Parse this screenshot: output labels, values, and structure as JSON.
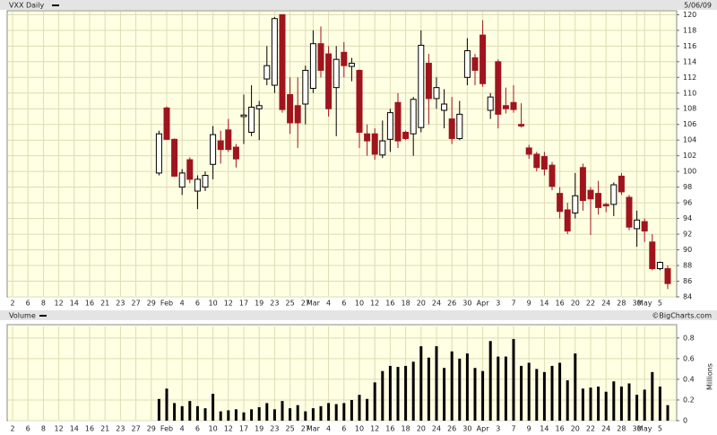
{
  "chart_data": [
    {
      "type": "candlestick",
      "title": "VXX Daily",
      "date": "5/06/09",
      "categories": [
        "2",
        null,
        "6",
        null,
        "8",
        null,
        "12",
        null,
        "14",
        null,
        "16",
        null,
        "21",
        null,
        "23",
        null,
        "27",
        null,
        "29",
        null,
        "Feb",
        null,
        "4",
        null,
        "6",
        null,
        "10",
        null,
        "12",
        null,
        "17",
        null,
        "19",
        null,
        "23",
        null,
        "25",
        null,
        "27",
        "Mar",
        null,
        "4",
        null,
        "6",
        null,
        "10",
        null,
        "12",
        null,
        "16",
        null,
        "18",
        null,
        "20",
        null,
        "24",
        null,
        "26",
        null,
        "30",
        null,
        "Apr",
        null,
        "3",
        null,
        "7",
        null,
        "9",
        null,
        "14",
        null,
        "16",
        null,
        "20",
        null,
        "22",
        null,
        "24",
        null,
        "28",
        null,
        "30",
        "May",
        null,
        "5",
        null
      ],
      "open": [
        null,
        null,
        null,
        null,
        null,
        null,
        null,
        null,
        null,
        null,
        null,
        null,
        null,
        null,
        null,
        null,
        null,
        null,
        null,
        99.8,
        108.1,
        104.1,
        98,
        101.5,
        97.5,
        98,
        100.9,
        103.9,
        105.3,
        103.1,
        107,
        105,
        108,
        111.8,
        111,
        120,
        109.8,
        108.4,
        108.6,
        110.6,
        116.3,
        115,
        110.7,
        115.2,
        113.4,
        112.9,
        104.8,
        104.8,
        102.1,
        104.1,
        108.8,
        105,
        104.8,
        105.6,
        113.8,
        109.3,
        107.8,
        106.7,
        104.2,
        112,
        114.5,
        117.4,
        107.8,
        114,
        108.4,
        108.8,
        106,
        103,
        102.2,
        101.9,
        100.8,
        97.2,
        95.1,
        94.7,
        100.5,
        97.6,
        97.2,
        95.8,
        95.8,
        99.4,
        96.7,
        92.7,
        93.6,
        91,
        87.6,
        87.6
      ],
      "high": [
        null,
        null,
        null,
        null,
        null,
        null,
        null,
        null,
        null,
        null,
        null,
        null,
        null,
        null,
        null,
        null,
        null,
        null,
        null,
        105.2,
        108.3,
        104.2,
        100.3,
        101.8,
        99.5,
        100,
        105.8,
        105.2,
        106.7,
        103.5,
        109.8,
        111,
        109,
        116,
        119.7,
        120,
        112,
        112,
        113.5,
        118,
        118.5,
        116,
        116,
        116.5,
        114.5,
        113,
        106,
        105.5,
        106.5,
        108,
        110,
        105.2,
        109.5,
        118,
        115,
        112,
        110.5,
        109.5,
        109,
        117,
        115,
        119.3,
        110,
        114.3,
        110.7,
        111,
        108.7,
        103.4,
        102.5,
        102.5,
        101.2,
        98,
        96,
        99.8,
        101,
        98,
        98.8,
        96,
        98.6,
        99.8,
        97,
        95,
        94,
        92,
        88.5,
        88
      ],
      "low": [
        null,
        null,
        null,
        null,
        null,
        null,
        null,
        null,
        null,
        null,
        null,
        null,
        null,
        null,
        null,
        null,
        null,
        null,
        null,
        99.5,
        104,
        99.3,
        97,
        98.5,
        95.2,
        97.5,
        99,
        101,
        102.5,
        100.5,
        103.5,
        104.5,
        104,
        111,
        110,
        107.5,
        104.8,
        103,
        106,
        110,
        112,
        107,
        104.5,
        112,
        111.5,
        103,
        102,
        101.5,
        101.7,
        102.5,
        103,
        104,
        102,
        105,
        106,
        108,
        105.5,
        103.5,
        104,
        111,
        111,
        110.8,
        106.7,
        105.5,
        107.4,
        107.5,
        105.6,
        101.6,
        100,
        99.5,
        97.6,
        94,
        92,
        94,
        95,
        91.9,
        94.5,
        94.8,
        94.3,
        97,
        92.5,
        90.4,
        91,
        87.4,
        87.4,
        85
      ],
      "close": [
        null,
        null,
        null,
        null,
        null,
        null,
        null,
        null,
        null,
        null,
        null,
        null,
        null,
        null,
        null,
        null,
        null,
        null,
        null,
        104.8,
        104.1,
        99.4,
        99.8,
        99,
        99,
        99.5,
        104.7,
        102.8,
        102.8,
        101.6,
        107.2,
        108.2,
        108.4,
        113.5,
        119.5,
        107.9,
        106.2,
        106.2,
        112.9,
        116.3,
        112.9,
        108,
        114.3,
        113.5,
        113.8,
        105,
        103.9,
        102.2,
        103.9,
        107.5,
        103.9,
        104.2,
        109.2,
        116.1,
        109.3,
        110.7,
        108.6,
        104.2,
        107.3,
        115.4,
        112.9,
        111.2,
        109.5,
        107.3,
        108,
        107.9,
        105.8,
        102.2,
        100.5,
        100.3,
        98.1,
        94.9,
        92.4,
        96.9,
        96.3,
        96.5,
        95.4,
        95.6,
        98.3,
        97.4,
        92.9,
        93.8,
        92.4,
        87.6,
        88.4,
        85.7
      ],
      "up_color": "#ffffff",
      "down_color": "#a0141e",
      "ylim": [
        84,
        120.5
      ],
      "yticks": [
        84,
        86,
        88,
        90,
        92,
        94,
        96,
        98,
        100,
        102,
        104,
        106,
        108,
        110,
        112,
        114,
        116,
        118,
        120
      ],
      "grid": true
    },
    {
      "type": "bar",
      "title": "Volume",
      "source": "©BigCharts.com",
      "y_label": "Millions",
      "categories": [
        "2",
        null,
        "6",
        null,
        "8",
        null,
        "12",
        null,
        "14",
        null,
        "16",
        null,
        "21",
        null,
        "23",
        null,
        "27",
        null,
        "29",
        null,
        "Feb",
        null,
        "4",
        null,
        "6",
        null,
        "10",
        null,
        "12",
        null,
        "17",
        null,
        "19",
        null,
        "23",
        null,
        "25",
        null,
        "27",
        "Mar",
        null,
        "4",
        null,
        "6",
        null,
        "10",
        null,
        "12",
        null,
        "16",
        null,
        "18",
        null,
        "20",
        null,
        "24",
        null,
        "26",
        null,
        "30",
        null,
        "Apr",
        null,
        "3",
        null,
        "7",
        null,
        "9",
        null,
        "14",
        null,
        "16",
        null,
        "20",
        null,
        "22",
        null,
        "24",
        null,
        "28",
        null,
        "30",
        "May",
        null,
        "5",
        null
      ],
      "values": [
        null,
        null,
        null,
        null,
        null,
        null,
        null,
        null,
        null,
        null,
        null,
        null,
        null,
        null,
        null,
        null,
        null,
        null,
        null,
        0.21,
        0.31,
        0.17,
        0.14,
        0.19,
        0.14,
        0.12,
        0.26,
        0.09,
        0.1,
        0.11,
        0.08,
        0.11,
        0.13,
        0.17,
        0.11,
        0.19,
        0.12,
        0.15,
        0.09,
        0.12,
        0.14,
        0.17,
        0.16,
        0.17,
        0.2,
        0.25,
        0.21,
        0.37,
        0.48,
        0.53,
        0.52,
        0.53,
        0.57,
        0.72,
        0.61,
        0.72,
        0.51,
        0.67,
        0.6,
        0.65,
        0.51,
        0.48,
        0.77,
        0.62,
        0.62,
        0.79,
        0.53,
        0.56,
        0.5,
        0.47,
        0.53,
        0.56,
        0.39,
        0.65,
        0.31,
        0.32,
        0.33,
        0.28,
        0.38,
        0.33,
        0.36,
        0.25,
        0.3,
        0.47,
        0.33,
        0.15
      ],
      "color": "#000000",
      "ylim": [
        0,
        0.92
      ],
      "yticks": [
        0,
        0.2,
        0.4,
        0.6,
        0.8
      ],
      "grid": true
    }
  ]
}
